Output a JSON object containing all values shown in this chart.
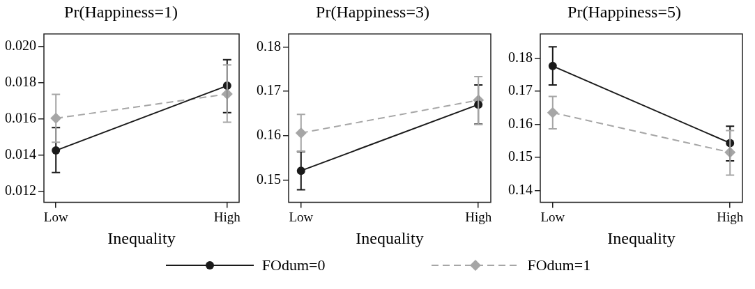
{
  "chart_data": [
    {
      "type": "line",
      "title": "Pr(Happiness=1)",
      "xlabel": "Inequality",
      "categories": [
        "Low",
        "High"
      ],
      "ylim": [
        0.0114,
        0.0207
      ],
      "yticks": [
        0.012,
        0.014,
        0.016,
        0.018,
        {
          "value": 0.02,
          "label": "0.020"
        }
      ],
      "grid": false,
      "legend": "bottom",
      "series": [
        {
          "name": "FOdum=0",
          "color": "#1a1a1a",
          "marker": "circle",
          "line_style": "solid",
          "values": [
            0.01426,
            0.01784
          ],
          "errors": [
            [
              0.01304,
              0.01552
            ],
            [
              0.01635,
              0.01928
            ]
          ]
        },
        {
          "name": "FOdum=1",
          "color": "#a6a6a6",
          "marker": "diamond",
          "line_style": "dashed",
          "values": [
            0.01604,
            0.01738
          ],
          "errors": [
            [
              0.01472,
              0.01736
            ],
            [
              0.01582,
              0.01899
            ]
          ]
        }
      ]
    },
    {
      "type": "line",
      "title": "Pr(Happiness=3)",
      "xlabel": "Inequality",
      "categories": [
        "Low",
        "High"
      ],
      "ylim": [
        0.145,
        0.1829
      ],
      "yticks": [
        0.15,
        0.16,
        0.17,
        0.18
      ],
      "grid": false,
      "series": [
        {
          "color": "#1a1a1a",
          "marker": "circle",
          "line_style": "solid",
          "values": [
            0.1521,
            0.167
          ],
          "errors": [
            [
              0.1478,
              0.1564
            ],
            [
              0.1626,
              0.1714
            ]
          ]
        },
        {
          "color": "#a6a6a6",
          "marker": "diamond",
          "line_style": "dashed",
          "values": [
            0.1606,
            0.168
          ],
          "errors": [
            [
              0.1565,
              0.1648
            ],
            [
              0.1625,
              0.1733
            ]
          ]
        }
      ]
    },
    {
      "type": "line",
      "title": "Pr(Happiness=5)",
      "xlabel": "Inequality",
      "categories": [
        "Low",
        "High"
      ],
      "ylim": [
        0.1364,
        0.1873
      ],
      "yticks": [
        0.14,
        0.15,
        0.16,
        0.17,
        0.18
      ],
      "grid": false,
      "series": [
        {
          "color": "#1a1a1a",
          "marker": "circle",
          "line_style": "solid",
          "values": [
            0.1776,
            0.1543
          ],
          "errors": [
            [
              0.1719,
              0.1834
            ],
            [
              0.1489,
              0.1594
            ]
          ]
        },
        {
          "color": "#a6a6a6",
          "marker": "diamond",
          "line_style": "dashed",
          "values": [
            0.1635,
            0.1515
          ],
          "errors": [
            [
              0.1586,
              0.1684
            ],
            [
              0.1446,
              0.1581
            ]
          ]
        }
      ]
    }
  ]
}
